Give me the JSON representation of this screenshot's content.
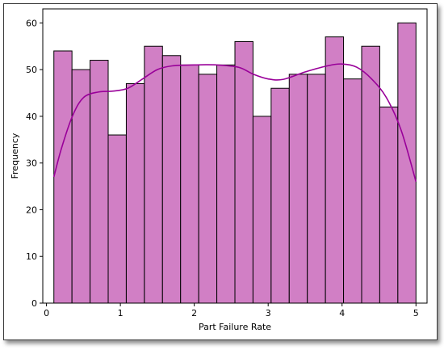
{
  "chart_data": {
    "type": "bar",
    "subtype": "histogram",
    "title": "",
    "xlabel": "Part Failure Rate",
    "ylabel": "Frequency",
    "xlim": [
      -0.05,
      5.15
    ],
    "ylim": [
      0,
      63
    ],
    "xticks": [
      0,
      1,
      2,
      3,
      4,
      5
    ],
    "yticks": [
      0,
      10,
      20,
      30,
      40,
      50,
      60
    ],
    "bin_start": 0.1,
    "bin_width": 0.245,
    "bins": [
      {
        "x0": 0.1,
        "x1": 0.345,
        "count": 54
      },
      {
        "x0": 0.345,
        "x1": 0.59,
        "count": 50
      },
      {
        "x0": 0.59,
        "x1": 0.835,
        "count": 52
      },
      {
        "x0": 0.835,
        "x1": 1.08,
        "count": 36
      },
      {
        "x0": 1.08,
        "x1": 1.325,
        "count": 47
      },
      {
        "x0": 1.325,
        "x1": 1.57,
        "count": 55
      },
      {
        "x0": 1.57,
        "x1": 1.815,
        "count": 53
      },
      {
        "x0": 1.815,
        "x1": 2.06,
        "count": 51
      },
      {
        "x0": 2.06,
        "x1": 2.305,
        "count": 49
      },
      {
        "x0": 2.305,
        "x1": 2.55,
        "count": 51
      },
      {
        "x0": 2.55,
        "x1": 2.795,
        "count": 56
      },
      {
        "x0": 2.795,
        "x1": 3.04,
        "count": 40
      },
      {
        "x0": 3.04,
        "x1": 3.285,
        "count": 46
      },
      {
        "x0": 3.285,
        "x1": 3.53,
        "count": 49
      },
      {
        "x0": 3.53,
        "x1": 3.775,
        "count": 49
      },
      {
        "x0": 3.775,
        "x1": 4.02,
        "count": 57
      },
      {
        "x0": 4.02,
        "x1": 4.265,
        "count": 48
      },
      {
        "x0": 4.265,
        "x1": 4.51,
        "count": 55
      },
      {
        "x0": 4.51,
        "x1": 4.755,
        "count": 42
      },
      {
        "x0": 4.755,
        "x1": 5.0,
        "count": 60
      }
    ],
    "kde_curve": {
      "x": [
        0.1,
        0.2,
        0.35,
        0.5,
        0.7,
        0.9,
        1.1,
        1.3,
        1.5,
        1.7,
        2.0,
        2.3,
        2.6,
        2.8,
        3.0,
        3.2,
        3.5,
        3.8,
        4.0,
        4.2,
        4.4,
        4.6,
        4.8,
        5.0
      ],
      "y": [
        27,
        33,
        40,
        44,
        45.2,
        45.4,
        46,
        48,
        50,
        50.8,
        51,
        51,
        50.5,
        49,
        48,
        47.9,
        49.5,
        50.8,
        51.2,
        50.5,
        48,
        44,
        37,
        26
      ]
    },
    "colors": {
      "bar_fill": "#d17fc5",
      "bar_edge": "#000000",
      "kde_line": "#990099"
    },
    "grid": false,
    "legend": "none"
  }
}
